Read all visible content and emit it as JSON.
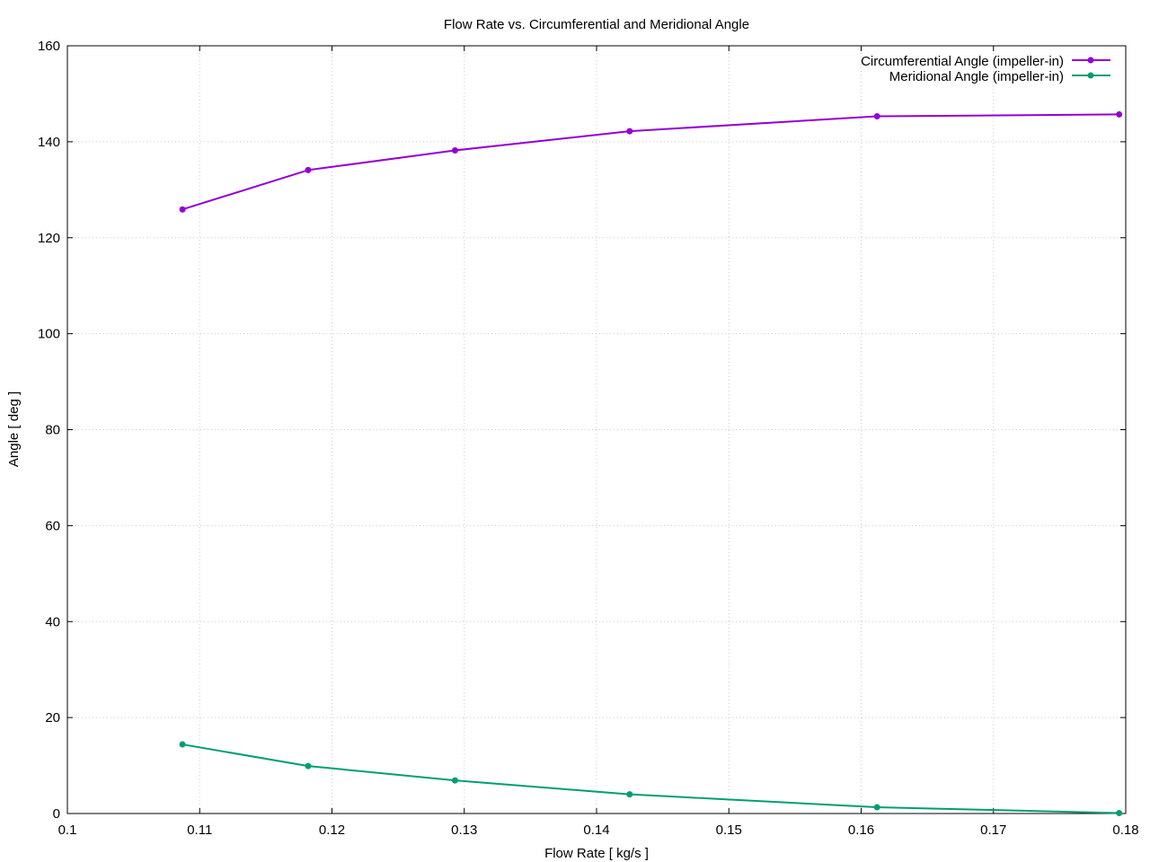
{
  "chart_data": {
    "type": "line",
    "title": "Flow Rate vs. Circumferential and Meridional Angle",
    "xlabel": "Flow Rate [ kg/s ]",
    "ylabel": "Angle [ deg ]",
    "xlim": [
      0.1,
      0.18
    ],
    "ylim": [
      0,
      160
    ],
    "xticks": [
      0.1,
      0.11,
      0.12,
      0.13,
      0.14,
      0.15,
      0.16,
      0.17,
      0.18
    ],
    "xtick_labels": [
      "0.1",
      "0.11",
      "0.12",
      "0.13",
      "0.14",
      "0.15",
      "0.16",
      "0.17",
      "0.18"
    ],
    "yticks": [
      0,
      20,
      40,
      60,
      80,
      100,
      120,
      140,
      160
    ],
    "ytick_labels": [
      "0",
      "20",
      "40",
      "60",
      "80",
      "100",
      "120",
      "140",
      "160"
    ],
    "grid": true,
    "legend_position": "top-right",
    "series": [
      {
        "name": "Circumferential Angle (impeller-in)",
        "color": "#9400d3",
        "x": [
          0.1087,
          0.1182,
          0.1293,
          0.1425,
          0.1612,
          0.1795
        ],
        "y": [
          125.9,
          134.1,
          138.2,
          142.2,
          145.3,
          145.7
        ]
      },
      {
        "name": "Meridional Angle (impeller-in)",
        "color": "#009e73",
        "x": [
          0.1087,
          0.1182,
          0.1293,
          0.1425,
          0.1612,
          0.1795
        ],
        "y": [
          14.4,
          9.9,
          6.9,
          4.0,
          1.3,
          0.1
        ]
      }
    ]
  }
}
